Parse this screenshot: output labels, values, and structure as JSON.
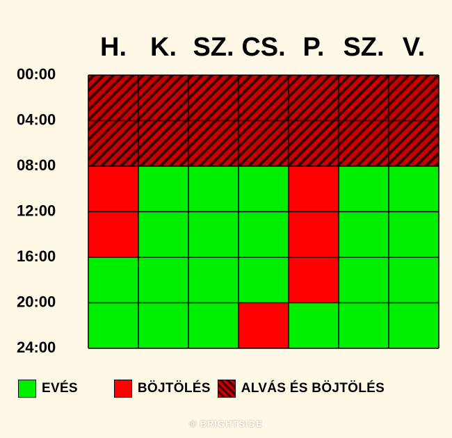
{
  "chart_data": {
    "type": "heatmap",
    "columns": [
      "H.",
      "K.",
      "SZ.",
      "CS.",
      "P.",
      "SZ.",
      "V."
    ],
    "time_ticks": [
      "00:00",
      "04:00",
      "08:00",
      "12:00",
      "16:00",
      "20:00",
      "24:00"
    ],
    "row_interval_hours": 4,
    "cells": [
      [
        "sleep",
        "sleep",
        "sleep",
        "sleep",
        "sleep",
        "sleep",
        "sleep"
      ],
      [
        "sleep",
        "sleep",
        "sleep",
        "sleep",
        "sleep",
        "sleep",
        "sleep"
      ],
      [
        "fast",
        "eat",
        "eat",
        "eat",
        "fast",
        "eat",
        "eat"
      ],
      [
        "fast",
        "eat",
        "eat",
        "eat",
        "fast",
        "eat",
        "eat"
      ],
      [
        "eat",
        "eat",
        "eat",
        "eat",
        "fast",
        "eat",
        "eat"
      ],
      [
        "eat",
        "eat",
        "eat",
        "fast",
        "eat",
        "eat",
        "eat"
      ]
    ],
    "colors": {
      "eat": "#00ee00",
      "fast": "#ff0000",
      "sleep_light": "#c80000",
      "sleep_dark": "#3a0000",
      "grid": "#000000"
    },
    "legend": [
      {
        "key": "eat",
        "label": "EVÉS"
      },
      {
        "key": "fast",
        "label": "BÖJTÖLÉS"
      },
      {
        "key": "sleep",
        "label": "ALVÁS ÉS BÖJTÖLÉS"
      }
    ]
  },
  "watermark": "© BRIGHTSIDE"
}
